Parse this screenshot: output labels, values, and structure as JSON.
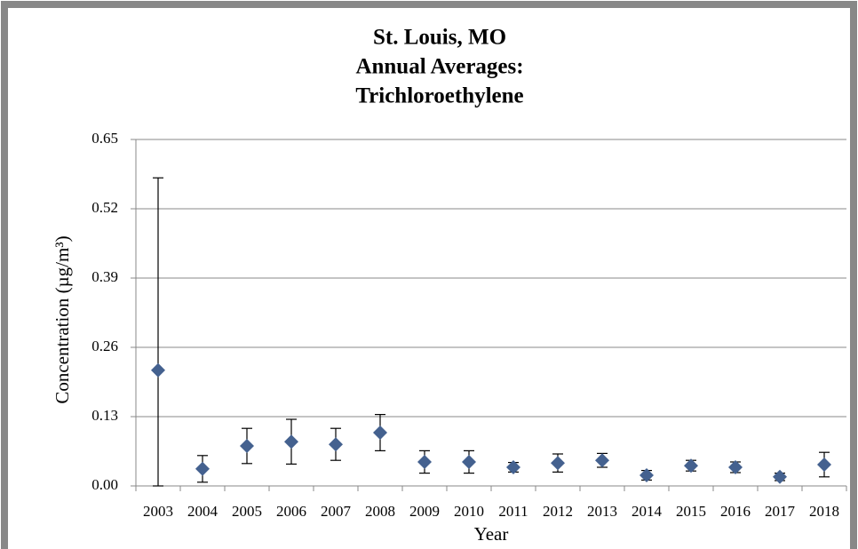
{
  "chart_data": {
    "type": "scatter",
    "title": [
      "St. Louis, MO",
      "Annual Averages:",
      "Trichloroethylene"
    ],
    "x_label": "Year",
    "y_label": "Concentration (µg/m³)",
    "categories": [
      "2003",
      "2004",
      "2005",
      "2006",
      "2007",
      "2008",
      "2009",
      "2010",
      "2011",
      "2012",
      "2013",
      "2014",
      "2015",
      "2016",
      "2017",
      "2018"
    ],
    "values": [
      0.217,
      0.032,
      0.075,
      0.083,
      0.078,
      0.1,
      0.045,
      0.045,
      0.035,
      0.043,
      0.048,
      0.02,
      0.038,
      0.035,
      0.017,
      0.04
    ],
    "errors": [
      0.361,
      0.025,
      0.033,
      0.042,
      0.03,
      0.034,
      0.021,
      0.021,
      0.009,
      0.017,
      0.013,
      0.009,
      0.01,
      0.01,
      0.007,
      0.023
    ],
    "color": "#44618f",
    "ylim": [
      0,
      0.65
    ],
    "yticks": [
      {
        "value": 0,
        "label": "0.00"
      },
      0.13,
      0.26,
      0.39,
      0.52,
      0.65
    ],
    "grid": true
  }
}
